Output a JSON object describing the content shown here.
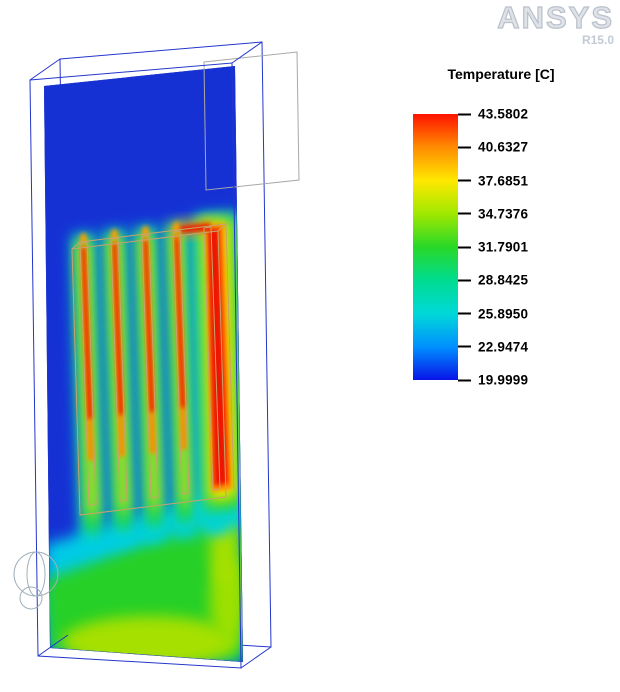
{
  "watermark": {
    "brand": "ANSYS",
    "release": "R15.0"
  },
  "legend": {
    "title": "Temperature [C]",
    "tick_labels": [
      "43.5802",
      "40.6327",
      "37.6851",
      "34.7376",
      "31.7901",
      "28.8425",
      "25.8950",
      "22.9474",
      "19.9999"
    ],
    "band_colors": [
      "#ff1200",
      "#ff8c00",
      "#ffe800",
      "#a0e800",
      "#28d828",
      "#00dc90",
      "#00d8d8",
      "#0090ff",
      "#0814e8"
    ]
  },
  "colors": {
    "enclosure_wireframe": "#2336cc",
    "fin_wireframe": "#c9a36a",
    "vent_outline": "#a8a8a8",
    "background": "#ffffff"
  },
  "chart_data": {
    "type": "heatmap",
    "title": "Temperature [C]",
    "variable": "Temperature",
    "unit": "C",
    "min": 19.9999,
    "max": 43.5802,
    "scale_ticks": [
      43.5802,
      40.6327,
      37.6851,
      34.7376,
      31.7901,
      28.8425,
      25.895,
      22.9474,
      19.9999
    ],
    "colormap": [
      "#ff1200",
      "#ff8c00",
      "#ffe800",
      "#a0e800",
      "#28d828",
      "#00dc90",
      "#00d8d8",
      "#0090ff",
      "#0814e8"
    ],
    "legend_position": "right"
  }
}
